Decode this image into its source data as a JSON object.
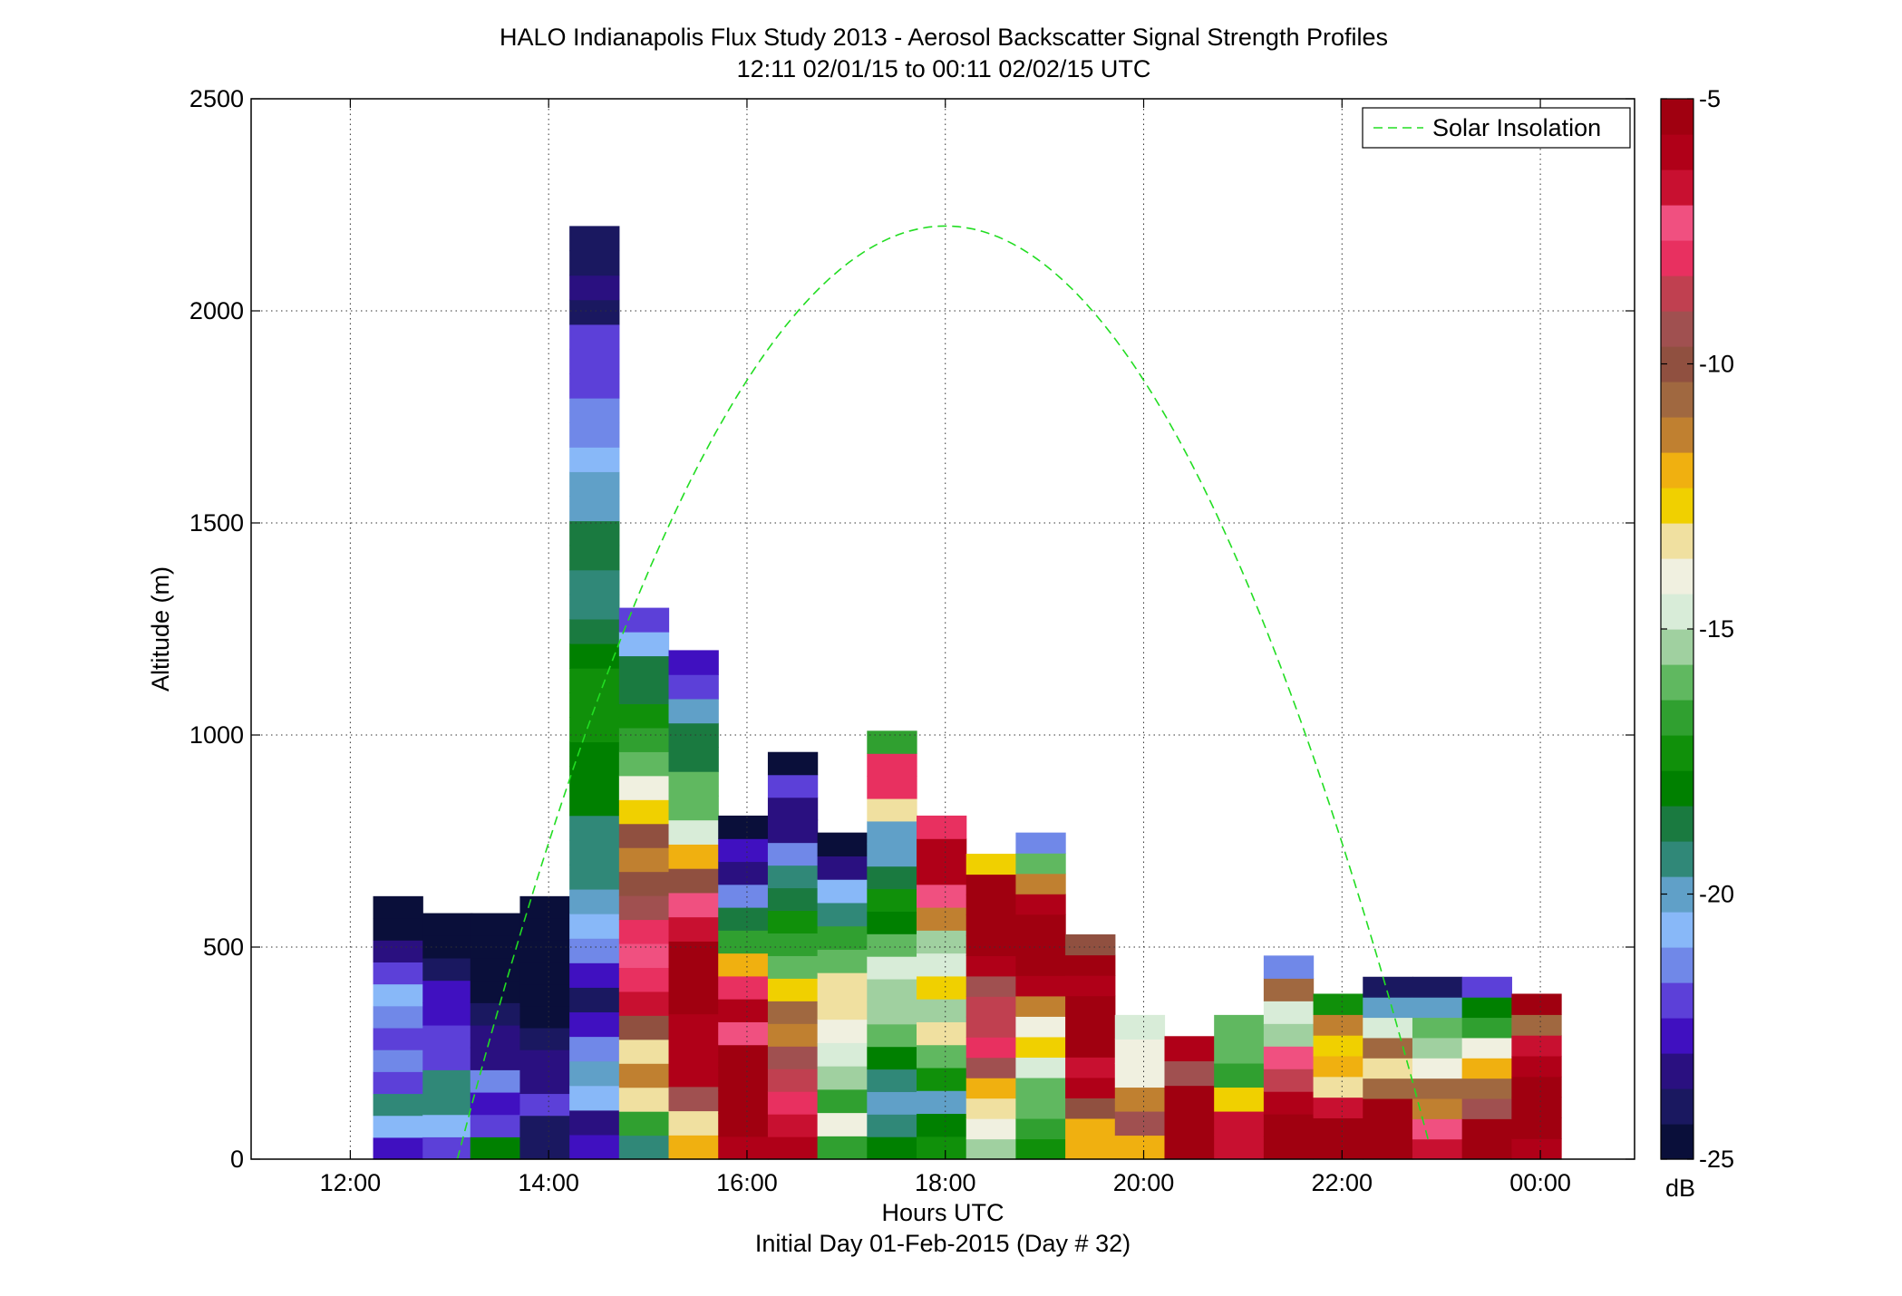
{
  "chart_data": {
    "type": "heatmap",
    "title": "HALO Indianapolis Flux Study 2013 - Aerosol Backscatter Signal Strength Profiles",
    "subtitle": "12:11 02/01/15 to 00:11 02/02/15  UTC",
    "xlabel": "Hours UTC",
    "xlabel2": "Initial Day 01-Feb-2015 (Day # 32)",
    "ylabel": "Altitude (m)",
    "xlim": [
      11.0,
      24.95
    ],
    "ylim": [
      0,
      2500
    ],
    "x_ticks": [
      12,
      14,
      16,
      18,
      20,
      22,
      24
    ],
    "x_tick_labels": [
      "12:00",
      "14:00",
      "16:00",
      "18:00",
      "20:00",
      "22:00",
      "00:00"
    ],
    "y_ticks": [
      0,
      500,
      1000,
      1500,
      2000,
      2500
    ],
    "y_tick_labels": [
      "0",
      "500",
      "1000",
      "1500",
      "2000",
      "2500"
    ],
    "grid": true,
    "legend": {
      "position": "top-right",
      "entries": [
        "Solar Insolation"
      ]
    },
    "colorbar": {
      "min": -25,
      "max": -5,
      "unit": "dB",
      "ticks": [
        -25,
        -20,
        -15,
        -10,
        -5
      ],
      "tick_labels": [
        "-25",
        "-20",
        "-15",
        "-10",
        "-5"
      ]
    },
    "bin_width_hours": 0.5,
    "bin_height_m": 48,
    "colors": {
      "solar_line": "#22dd22",
      "colormap": [
        "#0a0f3a",
        "#1a1860",
        "#2a1080",
        "#4010c0",
        "#5c40d8",
        "#7088e8",
        "#88b8f8",
        "#60a0c8",
        "#308878",
        "#1a7a40",
        "#008000",
        "#10900a",
        "#30a030",
        "#60b860",
        "#a0d0a0",
        "#d8ecd8",
        "#f0f0e0",
        "#f0e0a0",
        "#f0d000",
        "#f0b010",
        "#c08030",
        "#a06840",
        "#905040",
        "#a05050",
        "#c04050",
        "#e83060",
        "#f05080",
        "#c81030",
        "#b00018",
        "#a00010"
      ]
    },
    "solar_insolation": {
      "name": "Solar Insolation",
      "peak_x": 18.0,
      "peak_altitude": 2200,
      "half_width_hours": 4.92
    },
    "columns": [
      {
        "x": 12.48,
        "top": 620,
        "values": [
          -22.5,
          -20.5,
          -19.3,
          -22.0,
          -21.2,
          -22.0,
          -21.6,
          -20.6,
          -21.8,
          -23.3,
          -24.6,
          -24.9
        ]
      },
      {
        "x": 12.98,
        "top": 580,
        "values": [
          -22.3,
          -20.4,
          -19.2,
          -19.4,
          -21.9,
          -21.8,
          -23.0,
          -22.8,
          -24.3,
          -24.4,
          -24.7
        ]
      },
      {
        "x": 13.46,
        "top": 580,
        "values": [
          -18.0,
          -22.0,
          -22.6,
          -21.2,
          -23.3,
          -23.5,
          -23.9,
          -24.8,
          -24.7,
          -24.7,
          -24.6
        ]
      },
      {
        "x": 13.96,
        "top": 620,
        "values": [
          -23.7,
          -24.2,
          -22.0,
          -23.4,
          -23.1,
          -24.3,
          -24.8,
          -24.6,
          -24.5,
          -24.8,
          -24.7,
          -24.9
        ]
      },
      {
        "x": 14.46,
        "top": 2200,
        "values": [
          -23.0,
          -23.3,
          -20.4,
          -20.0,
          -21.2,
          -23.0,
          -24.1,
          -22.5,
          -21.1,
          -20.4,
          -19.8,
          -19.4,
          -19.6,
          -19.2,
          -18.2,
          -18.3,
          -17.9,
          -17.6,
          -17.3,
          -17.6,
          -18.2,
          -18.7,
          -19.2,
          -19.4,
          -18.9,
          -18.9,
          -19.7,
          -19.9,
          -20.5,
          -21.2,
          -21.1,
          -22.0,
          -21.9,
          -22.1,
          -24.0,
          -23.1,
          -24.1,
          -24.3
        ]
      },
      {
        "x": 14.96,
        "top": 1300,
        "values": [
          -19.2,
          -16.8,
          -13.5,
          -11.2,
          -13.1,
          -9.8,
          -6.9,
          -8.1,
          -7.4,
          -8.0,
          -9.4,
          -10.2,
          -11.3,
          -10.3,
          -13.0,
          -13.7,
          -15.9,
          -16.6,
          -17.5,
          -18.4,
          -18.6,
          -20.6,
          -22.3
        ]
      },
      {
        "x": 15.46,
        "top": 1200,
        "values": [
          -11.9,
          -13.2,
          -9.4,
          -6.2,
          -5.8,
          -5.9,
          -5.4,
          -5.2,
          -5.1,
          -7.0,
          -7.2,
          -10.1,
          -12.0,
          -14.8,
          -16.1,
          -15.9,
          -18.4,
          -19.0,
          -20.1,
          -22.0,
          -22.4
        ]
      },
      {
        "x": 15.96,
        "top": 810,
        "values": [
          -6.0,
          -5.0,
          -5.3,
          -5.6,
          -5.2,
          -7.1,
          -5.7,
          -8.1,
          -12.3,
          -16.4,
          -18.4,
          -21.6,
          -23.4,
          -22.8,
          -24.4
        ]
      },
      {
        "x": 16.46,
        "top": 960,
        "values": [
          -6.3,
          -7.0,
          -8.0,
          -9.0,
          -9.6,
          -11.1,
          -11.0,
          -12.9,
          -15.9,
          -16.9,
          -17.2,
          -18.4,
          -19.2,
          -21.6,
          -23.1,
          -23.1,
          -22.2,
          -24.5
        ]
      },
      {
        "x": 16.96,
        "top": 770,
        "values": [
          -16.4,
          -14.1,
          -16.6,
          -15.2,
          -14.5,
          -14.3,
          -13.4,
          -13.5,
          -16.1,
          -16.9,
          -19.3,
          -20.8,
          -23.3,
          -24.6
        ]
      },
      {
        "x": 17.46,
        "top": 1010,
        "values": [
          -18.3,
          -19.6,
          -20.1,
          -19.6,
          -17.7,
          -15.8,
          -15.5,
          -15.3,
          -15.0,
          -16.0,
          -17.9,
          -17.6,
          -19.0,
          -20.1,
          -19.8,
          -13.3,
          -8.2,
          -8.0,
          -16.7
        ]
      },
      {
        "x": 17.96,
        "top": 810,
        "values": [
          -17.4,
          -18.2,
          -19.9,
          -17.1,
          -15.8,
          -13.6,
          -15.3,
          -13.0,
          -14.7,
          -15.1,
          -11.1,
          -7.4,
          -6.3,
          -5.8,
          -7.8
        ]
      },
      {
        "x": 18.46,
        "top": 720,
        "values": [
          -15.2,
          -14.3,
          -13.3,
          -12.2,
          -9.1,
          -7.9,
          -8.6,
          -8.7,
          -9.3,
          -6.3,
          -5.0,
          -5.1,
          -5.3,
          -5.3,
          -12.9
        ]
      },
      {
        "x": 18.96,
        "top": 770,
        "values": [
          -17.4,
          -16.9,
          -16.2,
          -16.2,
          -14.9,
          -13.0,
          -13.7,
          -11.3,
          -6.0,
          -5.4,
          -5.0,
          -5.2,
          -6.2,
          -11.4,
          -16.2,
          -21.1
        ]
      },
      {
        "x": 19.46,
        "top": 530,
        "values": [
          -12.0,
          -11.9,
          -9.8,
          -6.1,
          -6.9,
          -5.3,
          -5.3,
          -5.5,
          -5.9,
          -5.6,
          -10.2
        ]
      },
      {
        "x": 19.96,
        "top": 340,
        "values": [
          -11.8,
          -9.5,
          -11.2,
          -13.8,
          -14.2,
          -14.7
        ]
      },
      {
        "x": 20.46,
        "top": 290,
        "values": [
          -5.4,
          -5.3,
          -5.5,
          -9.5,
          -6.0
        ]
      },
      {
        "x": 20.96,
        "top": 340,
        "values": [
          -7.0,
          -6.9,
          -12.9,
          -16.4,
          -16.0,
          -15.8
        ]
      },
      {
        "x": 21.46,
        "top": 480,
        "values": [
          -5.6,
          -5.4,
          -5.7,
          -8.6,
          -7.5,
          -15.4,
          -15.0,
          -10.9,
          -21.6
        ]
      },
      {
        "x": 21.96,
        "top": 390,
        "values": [
          -5.4,
          -5.3,
          -7.0,
          -13.1,
          -12.2,
          -12.5,
          -11.6,
          -17.5
        ]
      },
      {
        "x": 22.46,
        "top": 430,
        "values": [
          -5.2,
          -5.3,
          -5.4,
          -10.9,
          -13.5,
          -10.6,
          -14.6,
          -19.7,
          -24.2
        ]
      },
      {
        "x": 22.96,
        "top": 430,
        "values": [
          -6.9,
          -7.5,
          -11.5,
          -10.9,
          -14.3,
          -15.3,
          -16.3,
          -19.7,
          -24.0
        ]
      },
      {
        "x": 23.46,
        "top": 430,
        "values": [
          -5.2,
          -5.2,
          -9.1,
          -11.0,
          -12.0,
          -14.2,
          -16.6,
          -18.3,
          -21.9
        ]
      },
      {
        "x": 23.96,
        "top": 390,
        "values": [
          -5.8,
          -5.4,
          -5.3,
          -5.3,
          -6.1,
          -6.7,
          -10.7,
          -5.2
        ]
      }
    ]
  }
}
